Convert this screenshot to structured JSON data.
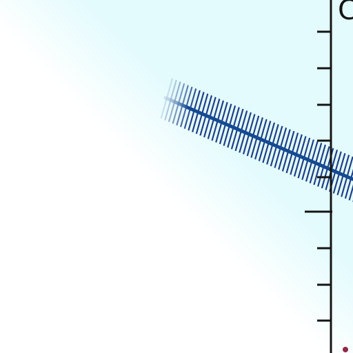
{
  "figure": {
    "axis_label": "C",
    "colors": {
      "background": "#ffffff",
      "fade_tint": "#e3fbfd",
      "axis": "#141414",
      "line": "#154a92",
      "line_faded": "#b6c8e2",
      "hatch": "#1d3f85",
      "point": "#8e2a45"
    },
    "glyphs": {
      "y_axis_icon": "y-axis",
      "x_axis_icon": "x-axis",
      "line_icon": "band-line",
      "hatch_icon": "hatch-band",
      "point_icon": "point"
    }
  }
}
